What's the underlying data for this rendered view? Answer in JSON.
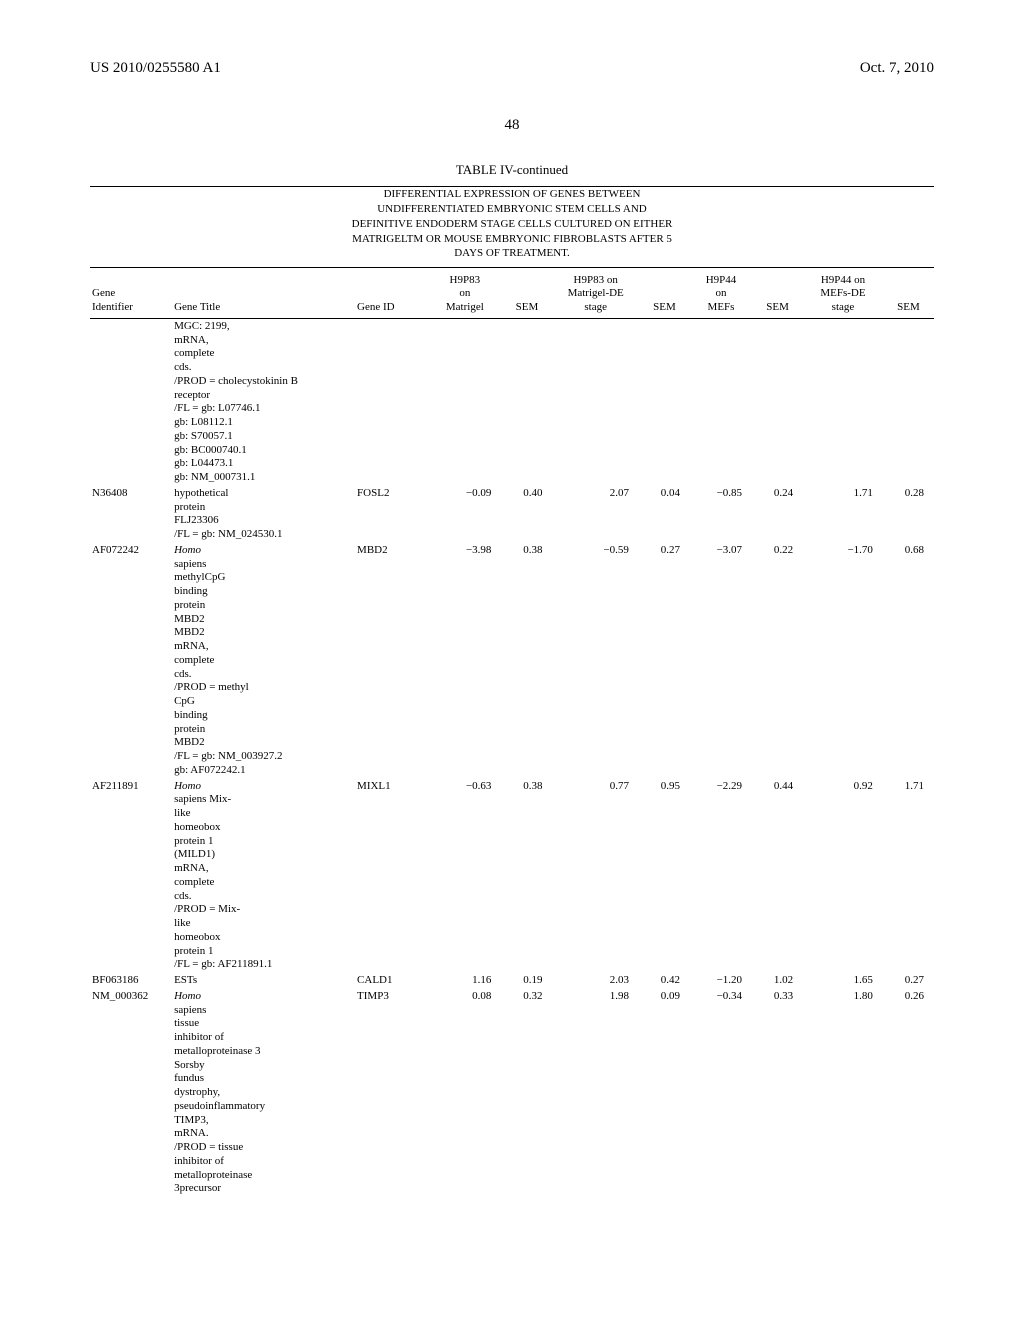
{
  "header": {
    "left": "US 2010/0255580 A1",
    "right": "Oct. 7, 2010"
  },
  "page_number": "48",
  "table": {
    "title": "TABLE IV-continued",
    "subtitle_lines": [
      "DIFFERENTIAL EXPRESSION OF GENES BETWEEN",
      "UNDIFFERENTIATED EMBRYONIC STEM CELLS AND",
      "DEFINITIVE ENDODERM STAGE CELLS CULTURED ON EITHER",
      "MATRIGELTM OR MOUSE EMBRYONIC FIBROBLASTS AFTER 5",
      "DAYS OF TREATMENT."
    ],
    "columns": {
      "identifier": "Gene\nIdentifier",
      "title": "Gene Title",
      "gene_id": "Gene ID",
      "h9p83_matrigel": "H9P83\non\nMatrigel",
      "sem1": "SEM",
      "h9p83_de": "H9P83 on\nMatrigel-DE\nstage",
      "sem2": "SEM",
      "h9p44_mef": "H9P44\non\nMEFs",
      "sem3": "SEM",
      "h9p44_de": "H9P44 on\nMEFs-DE\nstage",
      "sem4": "SEM"
    },
    "rows": [
      {
        "identifier": "",
        "title_lines": [
          "MGC: 2199,",
          "mRNA,",
          "complete",
          "cds.",
          "/PROD = cholecystokinin B",
          "receptor",
          "/FL = gb: L07746.1",
          "gb: L08112.1",
          "gb: S70057.1",
          "gb: BC000740.1",
          "gb: L04473.1",
          "gb: NM_000731.1"
        ],
        "italic_idx": [],
        "gene_id": "",
        "v1": "",
        "s1": "",
        "v2": "",
        "s2": "",
        "v3": "",
        "s3": "",
        "v4": "",
        "s4": ""
      },
      {
        "identifier": "N36408",
        "title_lines": [
          "hypothetical",
          "protein",
          "FLJ23306",
          "/FL = gb: NM_024530.1"
        ],
        "italic_idx": [],
        "gene_id": "FOSL2",
        "v1": "−0.09",
        "s1": "0.40",
        "v2": "2.07",
        "s2": "0.04",
        "v3": "−0.85",
        "s3": "0.24",
        "v4": "1.71",
        "s4": "0.28"
      },
      {
        "identifier": "AF072242",
        "title_lines": [
          "Homo",
          "sapiens",
          "methylCpG",
          "binding",
          "protein",
          "MBD2",
          "MBD2",
          "mRNA,",
          "complete",
          "cds.",
          "/PROD = methyl",
          "CpG",
          "binding",
          "protein",
          "MBD2",
          "/FL = gb: NM_003927.2",
          "gb: AF072242.1"
        ],
        "italic_idx": [
          0
        ],
        "gene_id": "MBD2",
        "v1": "−3.98",
        "s1": "0.38",
        "v2": "−0.59",
        "s2": "0.27",
        "v3": "−3.07",
        "s3": "0.22",
        "v4": "−1.70",
        "s4": "0.68"
      },
      {
        "identifier": "AF211891",
        "title_lines": [
          "Homo",
          "sapiens Mix-",
          "like",
          "homeobox",
          "protein 1",
          "(MILD1)",
          "mRNA,",
          "complete",
          "cds.",
          "/PROD = Mix-",
          "like",
          "homeobox",
          "protein 1",
          "/FL = gb: AF211891.1"
        ],
        "italic_idx": [
          0
        ],
        "gene_id": "MIXL1",
        "v1": "−0.63",
        "s1": "0.38",
        "v2": "0.77",
        "s2": "0.95",
        "v3": "−2.29",
        "s3": "0.44",
        "v4": "0.92",
        "s4": "1.71"
      },
      {
        "identifier": "BF063186",
        "title_lines": [
          "ESTs"
        ],
        "italic_idx": [],
        "gene_id": "CALD1",
        "v1": "1.16",
        "s1": "0.19",
        "v2": "2.03",
        "s2": "0.42",
        "v3": "−1.20",
        "s3": "1.02",
        "v4": "1.65",
        "s4": "0.27"
      },
      {
        "identifier": "NM_000362",
        "title_lines": [
          "Homo",
          "sapiens",
          "tissue",
          "inhibitor of",
          "metalloproteinase 3",
          "Sorsby",
          "fundus",
          "dystrophy,",
          "pseudoinflammatory",
          "TIMP3,",
          "mRNA.",
          "/PROD = tissue",
          "inhibitor of",
          "metalloproteinase",
          "3precursor"
        ],
        "italic_idx": [
          0
        ],
        "gene_id": "TIMP3",
        "v1": "0.08",
        "s1": "0.32",
        "v2": "1.98",
        "s2": "0.09",
        "v3": "−0.34",
        "s3": "0.33",
        "v4": "1.80",
        "s4": "0.26"
      }
    ]
  }
}
